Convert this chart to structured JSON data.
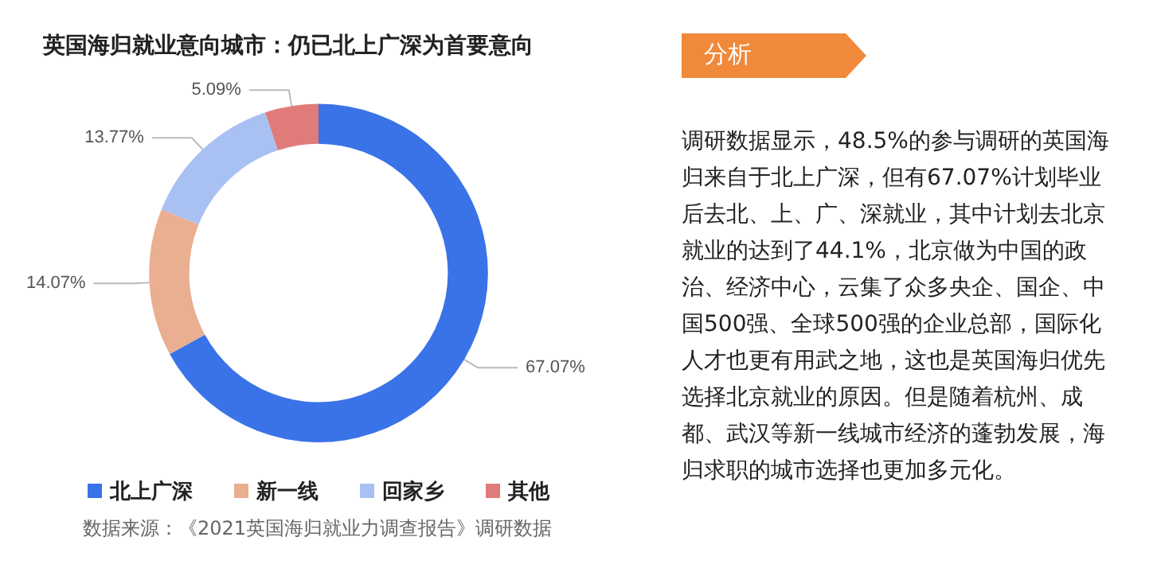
{
  "chart_data": {
    "type": "donut",
    "title": "英国海归就业意向城市：仍已北上广深为首要意向",
    "categories": [
      "北上广深",
      "新一线",
      "回家乡",
      "其他"
    ],
    "values": [
      67.07,
      14.07,
      13.77,
      5.09
    ],
    "value_labels": [
      "67.07%",
      "14.07%",
      "13.77%",
      "5.09%"
    ],
    "colors": [
      "#3a72e8",
      "#eaae90",
      "#a9c1f2",
      "#e07b7a"
    ],
    "legend": "bottom",
    "annotations": [
      "数据来源：《2021英国海归就业力调查报告》调研数据",
      "分析",
      "调研数据显示，48.5%的参与调研的英国海归来自于北上广深，但有67.07%计划毕业后去北、上、广、深就业，其中计划去北京就业的达到了44.1%，北京做为中国的政治、经济中心，云集了众多央企、国企、中国500强、全球500强的企业总部，国际化人才也更有用武之地，这也是英国海归优先选择北京就业的原因。但是随着杭州、成都、武汉等新一线城市经济的蓬勃发展，海归求职的城市选择也更加多元化。"
    ]
  }
}
